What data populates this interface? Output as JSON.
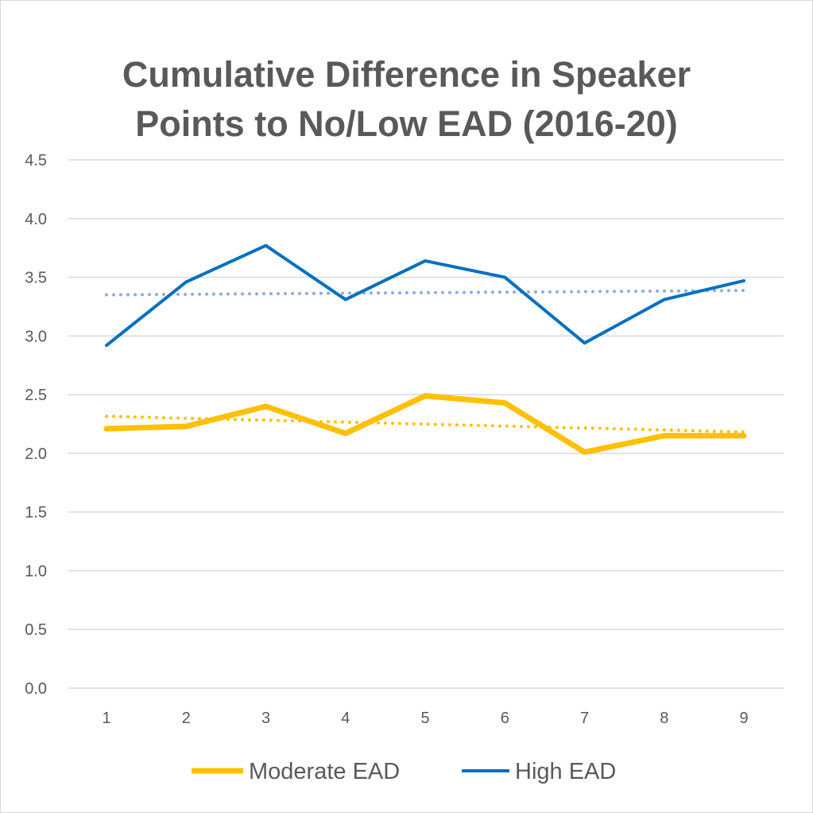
{
  "chart_data": {
    "type": "line",
    "title_lines": [
      "Cumulative Difference in Speaker",
      "Points to No/Low EAD (2016-20)"
    ],
    "x": [
      1,
      2,
      3,
      4,
      5,
      6,
      7,
      8,
      9
    ],
    "x_tick_labels": [
      "1",
      "2",
      "3",
      "4",
      "5",
      "6",
      "7",
      "8",
      "9"
    ],
    "y_tick_labels": [
      "0.0",
      "0.5",
      "1.0",
      "1.5",
      "2.0",
      "2.5",
      "3.0",
      "3.5",
      "4.0",
      "4.5"
    ],
    "ylim": [
      0,
      4.5
    ],
    "grid": true,
    "legend_position": "bottom",
    "series": [
      {
        "name": "Moderate EAD",
        "color": "#FFC000",
        "trend_color": "#FFC000",
        "values": [
          2.21,
          2.23,
          2.4,
          2.17,
          2.49,
          2.43,
          2.01,
          2.15,
          2.15
        ],
        "trendline": "linear"
      },
      {
        "name": "High EAD",
        "color": "#0070C0",
        "trend_color": "#8FAADC",
        "values": [
          2.92,
          3.46,
          3.77,
          3.31,
          3.64,
          3.5,
          2.94,
          3.31,
          3.47
        ],
        "trendline": "linear"
      }
    ]
  }
}
